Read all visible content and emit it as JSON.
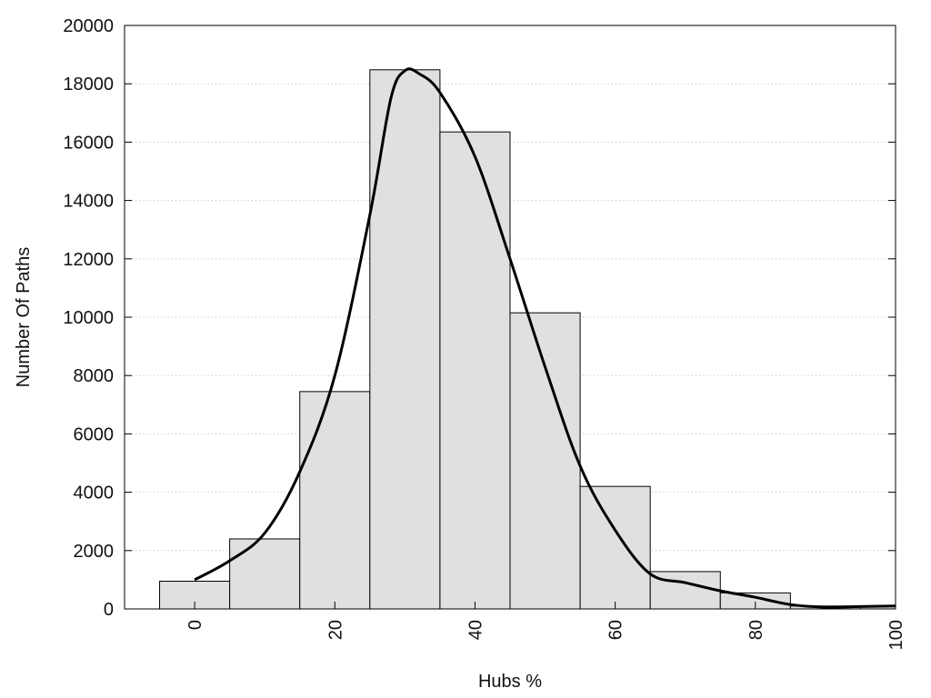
{
  "chart_data": {
    "type": "bar",
    "title": "",
    "xlabel": "Hubs %",
    "ylabel": "Number Of Paths",
    "xlim": [
      -10,
      100
    ],
    "ylim": [
      0,
      20000
    ],
    "grid": "horizontal dotted",
    "bar_color": "#e0e0e0",
    "bins": [
      {
        "from": -5,
        "to": 5,
        "value": 950
      },
      {
        "from": 5,
        "to": 15,
        "value": 2400
      },
      {
        "from": 15,
        "to": 25,
        "value": 7450
      },
      {
        "from": 25,
        "to": 35,
        "value": 18480
      },
      {
        "from": 35,
        "to": 45,
        "value": 16350
      },
      {
        "from": 45,
        "to": 55,
        "value": 10150
      },
      {
        "from": 55,
        "to": 65,
        "value": 4200
      },
      {
        "from": 65,
        "to": 75,
        "value": 1280
      },
      {
        "from": 75,
        "to": 85,
        "value": 550
      },
      {
        "from": 85,
        "to": 95,
        "value": 100
      },
      {
        "from": 95,
        "to": 100,
        "value": 100
      }
    ],
    "x_ticks": [
      "0",
      "20",
      "40",
      "60",
      "80",
      "100"
    ],
    "y_ticks": [
      "0",
      "2000",
      "4000",
      "6000",
      "8000",
      "10000",
      "12000",
      "14000",
      "16000",
      "18000",
      "20000"
    ],
    "density_curve": {
      "x": [
        0,
        5,
        10,
        15,
        20,
        25,
        28,
        30,
        32,
        35,
        40,
        45,
        50,
        55,
        60,
        65,
        70,
        75,
        80,
        85,
        90,
        95,
        100
      ],
      "y": [
        1000,
        1650,
        2600,
        4700,
        8000,
        13500,
        17500,
        18450,
        18350,
        17700,
        15500,
        12000,
        8300,
        4900,
        2700,
        1200,
        900,
        620,
        400,
        150,
        60,
        80,
        100
      ]
    }
  }
}
